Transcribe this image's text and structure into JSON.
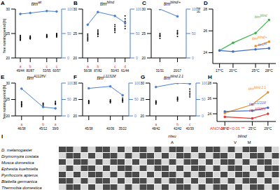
{
  "chart_data": [
    {
      "label": "A",
      "type": "scatter",
      "title": "tim",
      "title_superscript": "wt",
      "ylabel": "free running period [h]",
      "x": [
        17,
        20,
        25,
        28
      ],
      "xlim": [
        15.5,
        29.5
      ],
      "xticks": [
        {
          "value": 17,
          "label": "17°C"
        },
        {
          "value": 20,
          "label": "20°C"
        },
        {
          "value": 25,
          "label": "25°C"
        },
        {
          "value": 28,
          "label": "28°C"
        }
      ],
      "ylim": [
        20,
        30
      ],
      "yticks": [
        20,
        25,
        30
      ],
      "y2lim": [
        0,
        100
      ],
      "y2ticks": [
        0,
        50,
        100
      ],
      "series": [
        {
          "type": "scatter",
          "color": "#000000",
          "values": [
            [
              23.8,
              24.0,
              24.2,
              24.4,
              24.6,
              23.6
            ],
            [
              23.9,
              24.1,
              24.3,
              24.5,
              24.0,
              24.2
            ],
            [
              24.2,
              24.4,
              24.6,
              24.3,
              24.8,
              24.5
            ],
            [
              24.3,
              24.6,
              24.9,
              24.5,
              25.0,
              24.7
            ]
          ]
        },
        {
          "type": "line",
          "axis": "y2",
          "color": "#4a7fd0",
          "marker": "circle",
          "values": [
            90,
            92,
            96,
            95
          ]
        }
      ],
      "n_labels": [
        "49/44",
        "80/87",
        "53/55",
        "60/57"
      ],
      "letters": [
        "a",
        "b",
        "c",
        "c"
      ]
    },
    {
      "label": "B",
      "type": "scatter",
      "title": "tim",
      "title_superscript": "blind",
      "x": [
        17,
        20,
        25,
        28
      ],
      "xlim": [
        15.5,
        29.5
      ],
      "xticks": [
        {
          "value": 17,
          "label": "17°C"
        },
        {
          "value": 20,
          "label": "20°C"
        },
        {
          "value": 25,
          "label": "25°C"
        },
        {
          "value": 28,
          "label": "28°C"
        }
      ],
      "ylim": [
        20,
        30
      ],
      "yticks": [
        20,
        25,
        30
      ],
      "y2lim": [
        0,
        100
      ],
      "y2ticks": [
        0,
        50,
        100
      ],
      "series": [
        {
          "type": "scatter",
          "color": "#000000",
          "values": [
            [
              23.5,
              24.0,
              24.3,
              24.6,
              24.9,
              23.8
            ],
            [
              24.4,
              24.8,
              25.1,
              25.4,
              24.9,
              25.7
            ],
            [
              25.2,
              25.6,
              26.0,
              26.4,
              25.9,
              26.8
            ],
            [
              26.0,
              26.5,
              27.0,
              27.5,
              28.0,
              28.6
            ]
          ]
        },
        {
          "type": "line",
          "axis": "y2",
          "color": "#4a7fd0",
          "marker": "circle",
          "values": [
            68,
            94,
            86,
            72
          ]
        }
      ],
      "n_labels": [
        "56/38",
        "87/82",
        "50/43",
        "61/44"
      ],
      "letters": [
        "a",
        "b",
        "c",
        "d"
      ]
    },
    {
      "label": "C",
      "type": "scatter",
      "title": "tim",
      "title_superscript": "blind/+",
      "y2label": "rhythmic individuals [%]",
      "x": [
        25,
        28
      ],
      "xlim": [
        23.5,
        29.5
      ],
      "xticks": [
        {
          "value": 25,
          "label": "25°C"
        },
        {
          "value": 28,
          "label": "28°C"
        }
      ],
      "ylim": [
        20,
        30
      ],
      "yticks": [
        20,
        25,
        30
      ],
      "y2lim": [
        0,
        100
      ],
      "y2ticks": [
        0,
        50,
        100
      ],
      "series": [
        {
          "type": "scatter",
          "color": "#000000",
          "values": [
            [
              24.0,
              24.4,
              24.7,
              25.0,
              24.5
            ],
            [
              24.4,
              24.9,
              25.3,
              25.0,
              25.6
            ]
          ]
        },
        {
          "type": "line",
          "axis": "y2",
          "color": "#4a7fd0",
          "marker": "circle",
          "values": [
            100,
            85
          ]
        }
      ],
      "n_labels": [
        "31/31",
        "20/17"
      ]
    },
    {
      "label": "D",
      "type": "line",
      "xlim": [
        15.5,
        29.5
      ],
      "xticks": [
        {
          "value": 17,
          "label": "17°C"
        },
        {
          "value": 20,
          "label": "20°C"
        },
        {
          "value": 25,
          "label": "25°C"
        },
        {
          "value": 28,
          "label": "28°C"
        }
      ],
      "ylim": [
        23,
        28
      ],
      "yticks": [
        24,
        26,
        28
      ],
      "series": [
        {
          "name": "tim",
          "superscript": "blind",
          "color": "#3cb44b",
          "x": [
            17,
            20,
            25,
            28
          ],
          "values": [
            24.2,
            24.9,
            25.8,
            27.0
          ]
        },
        {
          "name": "tim",
          "superscript": "blind/+",
          "color": "#f08a24",
          "x": [
            25,
            28
          ],
          "values": [
            24.6,
            25.0
          ]
        },
        {
          "name": "tim",
          "superscript": "wt",
          "color": "#3f6fd0",
          "x": [
            17,
            20,
            25,
            28
          ],
          "values": [
            24.2,
            24.1,
            24.3,
            24.4
          ]
        }
      ]
    },
    {
      "label": "E",
      "type": "scatter",
      "title": "tim",
      "title_superscript": "A1128V",
      "ylabel": "free running period [h]",
      "x": [
        18,
        25,
        29
      ],
      "xlim": [
        16,
        31
      ],
      "xticks": [
        {
          "value": 18,
          "label": "18°C"
        },
        {
          "value": 25,
          "label": "25°C"
        },
        {
          "value": 29,
          "label": "29°C"
        }
      ],
      "ylim": [
        20,
        30
      ],
      "yticks": [
        20,
        25,
        30
      ],
      "y2lim": [
        0,
        100
      ],
      "y2ticks": [
        0,
        50,
        100
      ],
      "series": [
        {
          "type": "scatter",
          "color": "#000000",
          "values": [
            [
              22.8,
              23.2,
              23.6,
              24.0,
              23.4,
              24.3
            ],
            [
              22.9,
              23.3,
              23.6,
              23.9
            ],
            [
              23.5,
              24.0,
              24.4,
              23.8
            ]
          ]
        },
        {
          "type": "line",
          "axis": "y2",
          "color": "#4a7fd0",
          "marker": "circle",
          "values": [
            83,
            27,
            23
          ]
        }
      ],
      "n_labels": [
        "46/38",
        "45/12",
        "39/9"
      ],
      "letters": [
        "a",
        "b",
        "a"
      ]
    },
    {
      "label": "F",
      "type": "scatter",
      "title": "tim",
      "title_superscript": "L1131M",
      "x": [
        18,
        25,
        29
      ],
      "xlim": [
        16,
        31
      ],
      "xticks": [
        {
          "value": 18,
          "label": "18°C"
        },
        {
          "value": 25,
          "label": "25°C"
        },
        {
          "value": 29,
          "label": "29°C"
        }
      ],
      "ylim": [
        20,
        30
      ],
      "yticks": [
        20,
        25,
        30
      ],
      "y2lim": [
        0,
        100
      ],
      "y2ticks": [
        0,
        50,
        100
      ],
      "series": [
        {
          "type": "scatter",
          "color": "#000000",
          "values": [
            [
              23.8,
              24.1,
              24.4,
              24.7,
              24.2
            ],
            [
              24.0,
              24.3,
              24.6,
              24.9,
              24.4
            ],
            [
              24.2,
              24.6,
              25.0,
              25.4,
              24.8
            ]
          ]
        },
        {
          "type": "line",
          "axis": "y2",
          "color": "#4a7fd0",
          "marker": "circle",
          "values": [
            84,
            90,
            63
          ]
        }
      ],
      "n_labels": [
        "45/38",
        "40/36",
        "35/22"
      ]
    },
    {
      "label": "G",
      "type": "scatter",
      "title": "tim",
      "title_superscript": "blind 2.1",
      "annotation": "ANOVA: P<0.01 **",
      "x": [
        18,
        25,
        29
      ],
      "xlim": [
        16,
        31
      ],
      "xticks": [
        {
          "value": 18,
          "label": "18°C"
        },
        {
          "value": 25,
          "label": "25°C"
        },
        {
          "value": 29,
          "label": "29°C"
        }
      ],
      "ylim": [
        20,
        30
      ],
      "yticks": [
        20,
        25,
        30
      ],
      "y2lim": [
        0,
        100
      ],
      "y2ticks": [
        0,
        50,
        100
      ],
      "series": [
        {
          "type": "scatter",
          "color": "#000000",
          "values": [
            [
              23.6,
              24.0,
              24.3,
              24.6,
              24.1
            ],
            [
              24.6,
              25.0,
              25.3,
              25.7,
              25.1
            ],
            [
              25.8,
              26.4,
              26.9,
              27.5,
              28.2
            ]
          ]
        },
        {
          "type": "line",
          "axis": "y2",
          "color": "#4a7fd0",
          "marker": "circle",
          "values": [
            88,
            100,
            98
          ]
        }
      ],
      "n_labels": [
        "48/42",
        "42/42",
        "40/39"
      ],
      "letters": [
        "a",
        "b",
        "c"
      ]
    },
    {
      "label": "H",
      "type": "line",
      "xlim": [
        16,
        31
      ],
      "xticks": [
        {
          "value": 18,
          "label": "18°C"
        },
        {
          "value": 25,
          "label": "25°C"
        },
        {
          "value": 29,
          "label": "29°C"
        }
      ],
      "ylim": [
        23,
        28
      ],
      "yticks": [
        24,
        26,
        28
      ],
      "series": [
        {
          "name": "tim",
          "superscript": "blind 2.1",
          "color": "#f08a24",
          "x": [
            18,
            25,
            29
          ],
          "values": [
            24.1,
            25.2,
            26.8
          ]
        },
        {
          "name": "tim",
          "superscript": "L1131M",
          "color": "#3f6fd0",
          "x": [
            18,
            25,
            29
          ],
          "values": [
            24.3,
            24.4,
            24.8
          ]
        },
        {
          "name": "tim",
          "superscript": "A1128V",
          "color": "#e8322d",
          "x": [
            18,
            25,
            29
          ],
          "values": [
            23.6,
            23.4,
            24.0
          ]
        }
      ]
    }
  ],
  "alignment": {
    "label": "I",
    "species": [
      "D. melanogaster",
      "Drymomyza costata",
      "Musca domestica",
      "Ephestia kuehniella",
      "Pyrrhocoris apterus",
      "Blattella germanica",
      "Thermobia domestica"
    ],
    "markers": [
      {
        "label": "ritsu",
        "residues": [
          "A"
        ]
      },
      {
        "label": "blind",
        "residues": [
          "V",
          "M"
        ]
      }
    ]
  }
}
